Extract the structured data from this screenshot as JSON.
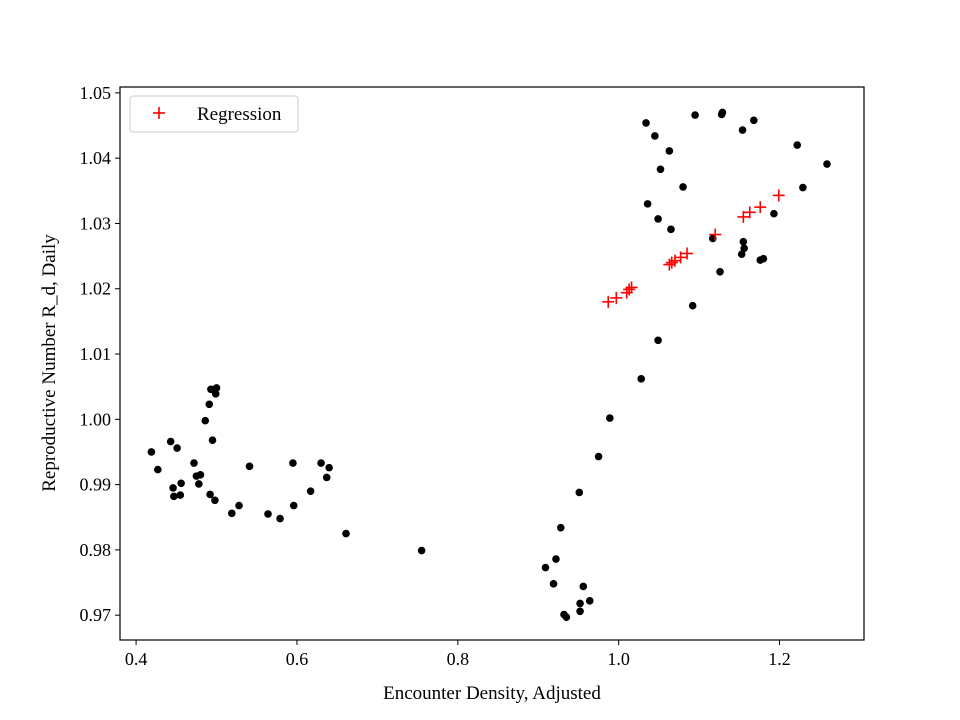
{
  "chart_data": {
    "type": "scatter",
    "title": "",
    "xlabel": "Encounter Density, Adjusted",
    "ylabel": "Reproductive Number R_d, Daily",
    "xlim": [
      0.38,
      1.305
    ],
    "ylim": [
      0.9662,
      1.0509
    ],
    "xticks": [
      0.4,
      0.6,
      0.8,
      1.0,
      1.2
    ],
    "xtick_labels": [
      "0.4",
      "0.6",
      "0.8",
      "1.0",
      "1.2"
    ],
    "yticks": [
      0.97,
      0.98,
      0.99,
      1.0,
      1.01,
      1.02,
      1.03,
      1.04,
      1.05
    ],
    "ytick_labels": [
      "0.97",
      "0.98",
      "0.99",
      "1.00",
      "1.01",
      "1.02",
      "1.03",
      "1.04",
      "1.05"
    ],
    "grid": false,
    "legend": {
      "position": "top-left",
      "entries": [
        "Regression"
      ]
    },
    "colors": {
      "observed": "#000000",
      "regression": "#ff0000",
      "axes": "#000000"
    },
    "series": [
      {
        "marker": "dot",
        "color": "#000000",
        "points": [
          [
            0.419,
            0.995
          ],
          [
            0.427,
            0.9923
          ],
          [
            0.443,
            0.9966
          ],
          [
            0.446,
            0.9895
          ],
          [
            0.447,
            0.9882
          ],
          [
            0.451,
            0.9956
          ],
          [
            0.455,
            0.9884
          ],
          [
            0.456,
            0.9902
          ],
          [
            0.472,
            0.9933
          ],
          [
            0.475,
            0.9913
          ],
          [
            0.478,
            0.9901
          ],
          [
            0.48,
            0.9915
          ],
          [
            0.486,
            0.9998
          ],
          [
            0.491,
            1.0023
          ],
          [
            0.492,
            0.9885
          ],
          [
            0.493,
            1.0046
          ],
          [
            0.495,
            0.9968
          ],
          [
            0.496,
            1.0045
          ],
          [
            0.498,
            0.9876
          ],
          [
            0.499,
            1.0039
          ],
          [
            0.5,
            1.0048
          ],
          [
            0.519,
            0.9856
          ],
          [
            0.528,
            0.9868
          ],
          [
            0.541,
            0.9928
          ],
          [
            0.564,
            0.9855
          ],
          [
            0.579,
            0.9848
          ],
          [
            0.595,
            0.9933
          ],
          [
            0.596,
            0.9868
          ],
          [
            0.617,
            0.989
          ],
          [
            0.63,
            0.9933
          ],
          [
            0.637,
            0.9911
          ],
          [
            0.64,
            0.9926
          ],
          [
            0.661,
            0.9825
          ],
          [
            0.755,
            0.9799
          ],
          [
            0.909,
            0.9773
          ],
          [
            0.919,
            0.9748
          ],
          [
            0.922,
            0.9786
          ],
          [
            0.928,
            0.9834
          ],
          [
            0.932,
            0.9701
          ],
          [
            0.935,
            0.9697
          ],
          [
            0.951,
            0.9888
          ],
          [
            0.952,
            0.9718
          ],
          [
            0.952,
            0.9706
          ],
          [
            0.956,
            0.9744
          ],
          [
            0.964,
            0.9722
          ],
          [
            0.975,
            0.9943
          ],
          [
            0.989,
            1.0002
          ],
          [
            1.028,
            1.0062
          ],
          [
            1.034,
            1.0454
          ],
          [
            1.036,
            1.033
          ],
          [
            1.045,
            1.0434
          ],
          [
            1.049,
            1.0307
          ],
          [
            1.049,
            1.0121
          ],
          [
            1.052,
            1.0383
          ],
          [
            1.063,
            1.0411
          ],
          [
            1.065,
            1.0291
          ],
          [
            1.08,
            1.0356
          ],
          [
            1.092,
            1.0174
          ],
          [
            1.095,
            1.0466
          ],
          [
            1.117,
            1.0277
          ],
          [
            1.126,
            1.0226
          ],
          [
            1.128,
            1.0467
          ],
          [
            1.129,
            1.047
          ],
          [
            1.153,
            1.0253
          ],
          [
            1.154,
            1.0443
          ],
          [
            1.155,
            1.0272
          ],
          [
            1.156,
            1.0262
          ],
          [
            1.168,
            1.0458
          ],
          [
            1.176,
            1.0244
          ],
          [
            1.18,
            1.0246
          ],
          [
            1.193,
            1.0315
          ],
          [
            1.222,
            1.042
          ],
          [
            1.229,
            1.0355
          ],
          [
            1.259,
            1.0391
          ]
        ]
      },
      {
        "name": "Regression",
        "marker": "plus",
        "color": "#ff0000",
        "points": [
          [
            0.987,
            1.018
          ],
          [
            0.997,
            1.0186
          ],
          [
            1.01,
            1.0194
          ],
          [
            1.013,
            1.0199
          ],
          [
            1.016,
            1.0202
          ],
          [
            1.063,
            1.0237
          ],
          [
            1.066,
            1.024
          ],
          [
            1.07,
            1.0243
          ],
          [
            1.077,
            1.0248
          ],
          [
            1.085,
            1.0254
          ],
          [
            1.12,
            1.0283
          ],
          [
            1.155,
            1.031
          ],
          [
            1.163,
            1.0317
          ],
          [
            1.176,
            1.0325
          ],
          [
            1.199,
            1.0343
          ]
        ]
      }
    ]
  }
}
